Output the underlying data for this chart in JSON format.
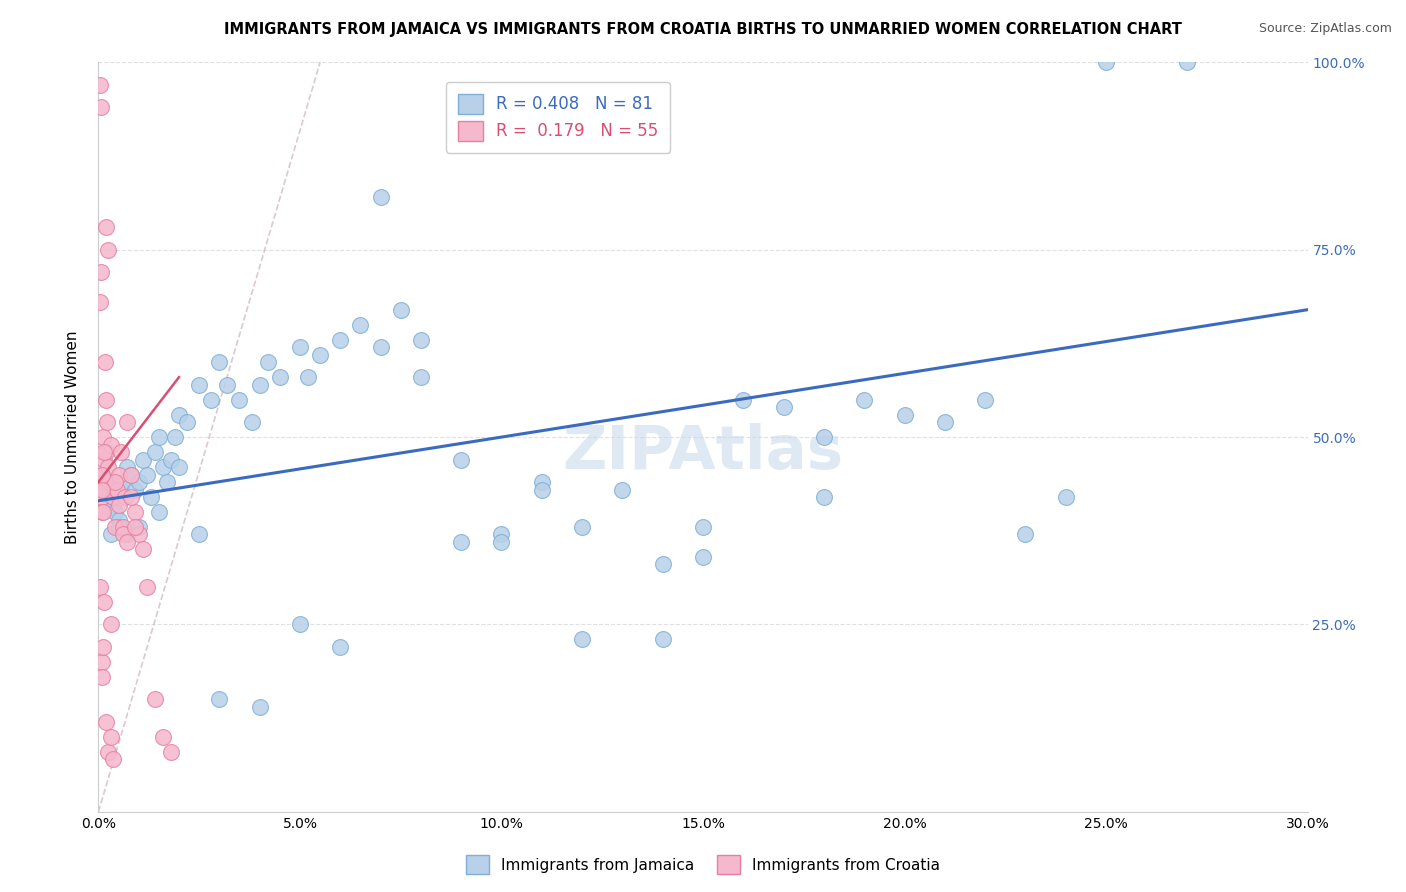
{
  "title": "IMMIGRANTS FROM JAMAICA VS IMMIGRANTS FROM CROATIA BIRTHS TO UNMARRIED WOMEN CORRELATION CHART",
  "source": "Source: ZipAtlas.com",
  "ylabel": "Births to Unmarried Women",
  "xlim": [
    0.0,
    30.0
  ],
  "ylim": [
    0.0,
    100.0
  ],
  "jamaica_color": "#b8d0e8",
  "croatia_color": "#f5b8cc",
  "jamaica_edge_color": "#7dafd9",
  "croatia_edge_color": "#e87fa0",
  "regression_jamaica_color": "#3a6bbf",
  "regression_croatia_color": "#d94f72",
  "diagonal_color": "#d0b0b8",
  "R_jamaica": 0.408,
  "N_jamaica": 81,
  "R_croatia": 0.179,
  "N_croatia": 55,
  "legend_label_jamaica": "Immigrants from Jamaica",
  "legend_label_croatia": "Immigrants from Croatia",
  "watermark": "ZIPAtlas",
  "background_color": "#ffffff",
  "jamaica_x": [
    0.1,
    0.15,
    0.2,
    0.25,
    0.3,
    0.35,
    0.4,
    0.5,
    0.55,
    0.6,
    0.7,
    0.8,
    0.9,
    1.0,
    1.1,
    1.2,
    1.3,
    1.4,
    1.5,
    1.6,
    1.7,
    1.8,
    1.9,
    2.0,
    2.2,
    2.5,
    2.8,
    3.0,
    3.2,
    3.5,
    3.8,
    4.0,
    4.2,
    4.5,
    5.0,
    5.2,
    5.5,
    6.0,
    6.5,
    7.0,
    7.5,
    8.0,
    9.0,
    10.0,
    11.0,
    12.0,
    13.0,
    14.0,
    15.0,
    16.0,
    17.0,
    18.0,
    19.0,
    20.0,
    21.0,
    22.0,
    23.0,
    24.0,
    25.0,
    0.3,
    0.5,
    0.7,
    1.0,
    1.5,
    2.0,
    2.5,
    3.0,
    4.0,
    5.0,
    6.0,
    7.0,
    8.0,
    9.0,
    10.0,
    11.0,
    12.0,
    14.0,
    15.0,
    18.0,
    27.0
  ],
  "jamaica_y": [
    43.0,
    44.0,
    43.0,
    44.0,
    42.0,
    41.0,
    40.0,
    39.0,
    43.0,
    44.0,
    46.0,
    45.0,
    43.0,
    44.0,
    47.0,
    45.0,
    42.0,
    48.0,
    50.0,
    46.0,
    44.0,
    47.0,
    50.0,
    53.0,
    52.0,
    57.0,
    55.0,
    60.0,
    57.0,
    55.0,
    52.0,
    57.0,
    60.0,
    58.0,
    62.0,
    58.0,
    61.0,
    63.0,
    65.0,
    62.0,
    67.0,
    63.0,
    36.0,
    37.0,
    44.0,
    23.0,
    43.0,
    33.0,
    34.0,
    55.0,
    54.0,
    50.0,
    55.0,
    53.0,
    52.0,
    55.0,
    37.0,
    42.0,
    100.0,
    37.0,
    38.0,
    37.0,
    38.0,
    40.0,
    46.0,
    37.0,
    15.0,
    14.0,
    25.0,
    22.0,
    82.0,
    58.0,
    47.0,
    36.0,
    43.0,
    38.0,
    23.0,
    38.0,
    42.0,
    100.0
  ],
  "croatia_x": [
    0.05,
    0.07,
    0.08,
    0.09,
    0.1,
    0.12,
    0.13,
    0.15,
    0.17,
    0.18,
    0.2,
    0.22,
    0.25,
    0.27,
    0.3,
    0.35,
    0.4,
    0.45,
    0.5,
    0.55,
    0.6,
    0.65,
    0.7,
    0.8,
    0.9,
    1.0,
    1.1,
    1.2,
    1.4,
    1.6,
    0.05,
    0.08,
    0.1,
    0.12,
    0.15,
    0.2,
    0.25,
    0.3,
    0.35,
    0.4,
    0.5,
    0.6,
    0.7,
    0.8,
    0.9,
    0.05,
    0.06,
    0.08,
    0.1,
    0.12,
    0.15,
    0.2,
    0.25,
    0.3,
    1.8
  ],
  "croatia_y": [
    97.0,
    94.0,
    42.0,
    40.0,
    45.0,
    50.0,
    43.0,
    47.0,
    60.0,
    55.0,
    48.0,
    52.0,
    46.0,
    44.0,
    49.0,
    42.0,
    38.0,
    43.0,
    45.0,
    48.0,
    38.0,
    42.0,
    52.0,
    45.0,
    40.0,
    37.0,
    35.0,
    30.0,
    15.0,
    10.0,
    30.0,
    20.0,
    18.0,
    22.0,
    28.0,
    12.0,
    8.0,
    10.0,
    7.0,
    44.0,
    41.0,
    37.0,
    36.0,
    42.0,
    38.0,
    68.0,
    72.0,
    45.0,
    43.0,
    40.0,
    48.0,
    78.0,
    75.0,
    25.0,
    8.0
  ],
  "grid_color": "#e0e0e0",
  "title_fontsize": 10.5,
  "axis_label_fontsize": 11,
  "tick_fontsize": 10,
  "legend_fontsize": 12,
  "jamaica_reg_x0": 0.0,
  "jamaica_reg_y0": 41.5,
  "jamaica_reg_x1": 30.0,
  "jamaica_reg_y1": 67.0,
  "croatia_reg_x0": 0.0,
  "croatia_reg_y0": 44.0,
  "croatia_reg_x1": 2.0,
  "croatia_reg_y1": 58.0,
  "diag_x0": 0.0,
  "diag_y0": 0.0,
  "diag_x1": 5.5,
  "diag_y1": 100.0
}
